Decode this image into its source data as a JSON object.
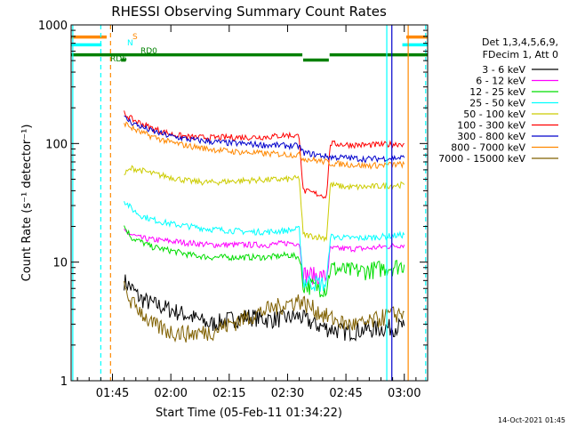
{
  "chart_data": {
    "type": "line",
    "title": "RHESSI Observing Summary Count Rates",
    "xlabel": "Start Time (05-Feb-11 01:34:22)",
    "ylabel": "Count Rate (s⁻¹ detector⁻¹)",
    "y_scale": "log",
    "ylim": [
      1,
      1000
    ],
    "xlim_minutes": [
      94.37,
      186.0
    ],
    "x_ticks": [
      {
        "minute": 105,
        "label": "01:45"
      },
      {
        "minute": 120,
        "label": "02:00"
      },
      {
        "minute": 135,
        "label": "02:15"
      },
      {
        "minute": 150,
        "label": "02:30"
      },
      {
        "minute": 165,
        "label": "02:45"
      },
      {
        "minute": 180,
        "label": "03:00"
      }
    ],
    "y_ticks": [
      {
        "value": 1,
        "label": "1"
      },
      {
        "value": 10,
        "label": "10"
      },
      {
        "value": 100,
        "label": "100"
      },
      {
        "value": 1000,
        "label": "1000"
      }
    ],
    "legend_position": "right",
    "legend_header": [
      "Det 1,3,4,5,6,9,",
      "FDecim 1, Att 0"
    ],
    "series": [
      {
        "name": "3 - 6 keV",
        "color": "#000000",
        "points": [
          [
            108,
            7
          ],
          [
            110,
            6
          ],
          [
            112,
            5
          ],
          [
            115,
            4.5
          ],
          [
            120,
            4
          ],
          [
            125,
            3.5
          ],
          [
            130,
            3
          ],
          [
            135,
            3.3
          ],
          [
            140,
            3.5
          ],
          [
            145,
            3.3
          ],
          [
            150,
            3.4
          ],
          [
            153,
            3.5
          ],
          [
            157,
            3
          ],
          [
            160,
            2.8
          ],
          [
            165,
            2.6
          ],
          [
            170,
            2.7
          ],
          [
            175,
            2.8
          ],
          [
            180,
            2.9
          ]
        ]
      },
      {
        "name": "6 - 12 keV",
        "color": "#ff00ff",
        "points": [
          [
            108,
            18
          ],
          [
            110,
            17
          ],
          [
            112,
            16
          ],
          [
            115,
            15.5
          ],
          [
            120,
            15
          ],
          [
            125,
            14.5
          ],
          [
            130,
            14
          ],
          [
            135,
            14
          ],
          [
            140,
            14
          ],
          [
            145,
            14
          ],
          [
            150,
            14.5
          ],
          [
            153,
            14.5
          ],
          [
            154,
            8
          ],
          [
            160,
            7.5
          ],
          [
            161,
            13
          ],
          [
            165,
            13
          ],
          [
            170,
            13
          ],
          [
            175,
            13.5
          ],
          [
            180,
            14
          ]
        ]
      },
      {
        "name": "12 - 25 keV",
        "color": "#00dd00",
        "points": [
          [
            108,
            20
          ],
          [
            110,
            16
          ],
          [
            112,
            15
          ],
          [
            115,
            13.5
          ],
          [
            120,
            12.5
          ],
          [
            125,
            11.5
          ],
          [
            130,
            11
          ],
          [
            135,
            11
          ],
          [
            140,
            11
          ],
          [
            145,
            11
          ],
          [
            150,
            11.5
          ],
          [
            153,
            11
          ],
          [
            154,
            6.5
          ],
          [
            160,
            6
          ],
          [
            161,
            9
          ],
          [
            165,
            8.5
          ],
          [
            170,
            8.5
          ],
          [
            175,
            9
          ],
          [
            180,
            9.5
          ]
        ]
      },
      {
        "name": "25 - 50 keV",
        "color": "#00ffff",
        "points": [
          [
            108,
            33
          ],
          [
            110,
            28
          ],
          [
            112,
            25
          ],
          [
            115,
            23
          ],
          [
            120,
            21
          ],
          [
            125,
            20
          ],
          [
            130,
            19
          ],
          [
            135,
            18.5
          ],
          [
            140,
            18
          ],
          [
            145,
            18
          ],
          [
            150,
            18.5
          ],
          [
            153,
            19
          ],
          [
            154,
            7
          ],
          [
            160,
            6.5
          ],
          [
            161,
            16.5
          ],
          [
            165,
            16
          ],
          [
            170,
            16
          ],
          [
            175,
            16.5
          ],
          [
            180,
            17
          ]
        ]
      },
      {
        "name": "50 - 100 keV",
        "color": "#cccc00",
        "points": [
          [
            108,
            55
          ],
          [
            110,
            62
          ],
          [
            112,
            60
          ],
          [
            115,
            56
          ],
          [
            120,
            52
          ],
          [
            125,
            48
          ],
          [
            130,
            47
          ],
          [
            135,
            48
          ],
          [
            140,
            49
          ],
          [
            145,
            49.5
          ],
          [
            150,
            50
          ],
          [
            153,
            51
          ],
          [
            154,
            17
          ],
          [
            160,
            16
          ],
          [
            161,
            45
          ],
          [
            165,
            43
          ],
          [
            170,
            43
          ],
          [
            175,
            44
          ],
          [
            180,
            45
          ]
        ]
      },
      {
        "name": "100 - 300 keV",
        "color": "#ff0000",
        "points": [
          [
            108,
            180
          ],
          [
            110,
            160
          ],
          [
            112,
            150
          ],
          [
            115,
            135
          ],
          [
            120,
            120
          ],
          [
            125,
            113
          ],
          [
            130,
            112
          ],
          [
            135,
            113
          ],
          [
            140,
            113
          ],
          [
            145,
            114
          ],
          [
            150,
            118
          ],
          [
            153,
            115
          ],
          [
            154,
            40
          ],
          [
            160,
            36
          ],
          [
            161,
            100
          ],
          [
            165,
            98
          ],
          [
            170,
            97
          ],
          [
            175,
            98
          ],
          [
            180,
            100
          ]
        ]
      },
      {
        "name": "300 - 800 keV",
        "color": "#0000cc",
        "points": [
          [
            108,
            165
          ],
          [
            110,
            150
          ],
          [
            112,
            140
          ],
          [
            115,
            128
          ],
          [
            120,
            115
          ],
          [
            125,
            108
          ],
          [
            130,
            104
          ],
          [
            135,
            101
          ],
          [
            140,
            99
          ],
          [
            145,
            97
          ],
          [
            150,
            96
          ],
          [
            153,
            95
          ],
          [
            154,
            84
          ],
          [
            160,
            78
          ],
          [
            161,
            77
          ],
          [
            165,
            76
          ],
          [
            170,
            74
          ],
          [
            175,
            75
          ],
          [
            180,
            76
          ]
        ]
      },
      {
        "name": "800 - 7000 keV",
        "color": "#ff8800",
        "points": [
          [
            108,
            150
          ],
          [
            110,
            135
          ],
          [
            112,
            125
          ],
          [
            115,
            115
          ],
          [
            120,
            102
          ],
          [
            125,
            95
          ],
          [
            130,
            90
          ],
          [
            135,
            86
          ],
          [
            140,
            84
          ],
          [
            145,
            82
          ],
          [
            150,
            81
          ],
          [
            153,
            80
          ],
          [
            154,
            75
          ],
          [
            160,
            70
          ],
          [
            161,
            68
          ],
          [
            165,
            67
          ],
          [
            170,
            65
          ],
          [
            175,
            66
          ],
          [
            180,
            67
          ]
        ]
      },
      {
        "name": "7000 - 15000 keV",
        "color": "#806000",
        "points": [
          [
            108,
            6
          ],
          [
            110,
            4.5
          ],
          [
            112,
            4
          ],
          [
            115,
            3
          ],
          [
            120,
            2.6
          ],
          [
            125,
            2.5
          ],
          [
            130,
            2.6
          ],
          [
            135,
            3
          ],
          [
            140,
            3.5
          ],
          [
            145,
            4
          ],
          [
            150,
            4.5
          ],
          [
            153,
            4.8
          ],
          [
            157,
            4
          ],
          [
            160,
            3.5
          ],
          [
            165,
            3
          ],
          [
            170,
            3
          ],
          [
            175,
            3.5
          ],
          [
            180,
            3.8
          ]
        ]
      }
    ],
    "state_bars": [
      {
        "label": "S",
        "color": "#ff8800",
        "segments": [
          [
            94.37,
            103.5
          ],
          [
            180.5,
            186
          ]
        ],
        "y_value": 790,
        "y_value_on": 790
      },
      {
        "label": "N",
        "color": "#00ffff",
        "segments": [
          [
            94.37,
            102.2
          ],
          [
            179.5,
            186
          ]
        ],
        "y_value": 680
      },
      {
        "label": "RD0",
        "color": "#008000",
        "segments": [
          [
            94.37,
            153.8
          ],
          [
            160.8,
            186
          ]
        ],
        "y_value": 560
      },
      {
        "label": "RD6",
        "color": "#008000",
        "segments": [
          [
            107.2,
            108.4
          ],
          [
            154,
            160.6
          ]
        ],
        "y_value": 505
      }
    ],
    "vertical_markers": [
      {
        "minute": 94.8,
        "color": "#00ffff",
        "style": "solid"
      },
      {
        "minute": 102.0,
        "color": "#00ffff",
        "style": "dashed"
      },
      {
        "minute": 104.5,
        "color": "#ff8800",
        "style": "dashed"
      },
      {
        "minute": 175.5,
        "color": "#00ffff",
        "style": "solid"
      },
      {
        "minute": 176.8,
        "color": "#0000cc",
        "style": "solid"
      },
      {
        "minute": 181.0,
        "color": "#ff8800",
        "style": "solid"
      },
      {
        "minute": 185.5,
        "color": "#00ffff",
        "style": "dashed"
      }
    ],
    "annotations": {
      "bar_labels": [
        "S",
        "N",
        "RD0",
        "RD6"
      ],
      "timestamp": "14-Oct-2021 01:45"
    }
  }
}
